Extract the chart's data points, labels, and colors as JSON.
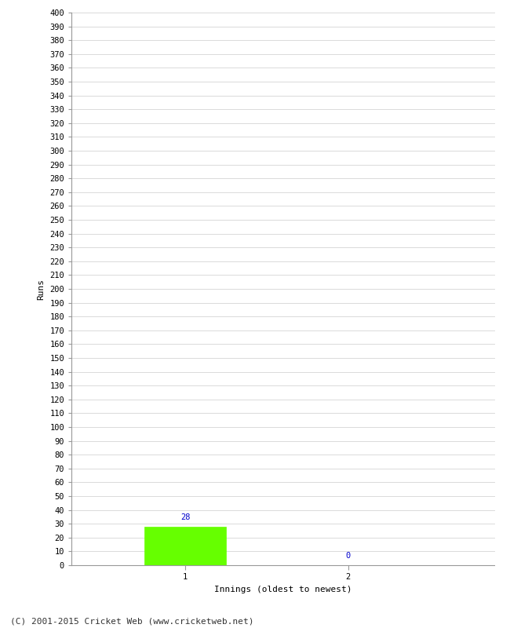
{
  "xlabel": "Innings (oldest to newest)",
  "ylabel": "Runs",
  "categories": [
    1,
    2
  ],
  "values": [
    28,
    0
  ],
  "bar_color": "#66ff00",
  "bar_edge_color": "#66ff00",
  "label_color": "#0000cc",
  "ylim": [
    0,
    400
  ],
  "ytick_step": 10,
  "background_color": "#ffffff",
  "grid_color": "#cccccc",
  "footer": "(C) 2001-2015 Cricket Web (www.cricketweb.net)",
  "tick_font_size": 7.5,
  "axis_label_font_size": 8,
  "footer_font_size": 8
}
